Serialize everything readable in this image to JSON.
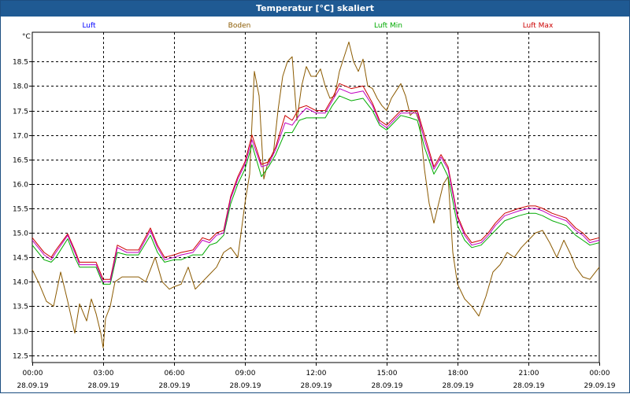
{
  "window_title": "Temperatur [°C] skaliert",
  "colors": {
    "titlebar": "#1f5a93",
    "grid": "#000000",
    "luft": "#0000ff",
    "boden": "#8b5a00",
    "luft_min": "#00aa00",
    "luft_max": "#cc0000",
    "luft_line": "#c000c0"
  },
  "chart_data": {
    "type": "line",
    "title": "Temperatur [°C] skaliert",
    "ylabel": "°C",
    "ylim": [
      12.35,
      19.1
    ],
    "xlim": [
      0,
      24
    ],
    "yticks": [
      12.5,
      13.0,
      13.5,
      14.0,
      14.5,
      15.0,
      15.5,
      16.0,
      16.5,
      17.0,
      17.5,
      18.0,
      18.5
    ],
    "xticks": [
      {
        "value": 0,
        "time": "00:00",
        "date": "28.09.19"
      },
      {
        "value": 3,
        "time": "03:00",
        "date": "28.09.19"
      },
      {
        "value": 6,
        "time": "06:00",
        "date": "28.09.19"
      },
      {
        "value": 9,
        "time": "09:00",
        "date": "28.09.19"
      },
      {
        "value": 12,
        "time": "12:00",
        "date": "28.09.19"
      },
      {
        "value": 15,
        "time": "15:00",
        "date": "28.09.19"
      },
      {
        "value": 18,
        "time": "18:00",
        "date": "28.09.19"
      },
      {
        "value": 21,
        "time": "21:00",
        "date": "28.09.19"
      },
      {
        "value": 24,
        "time": "00:00",
        "date": "29.09.19"
      }
    ],
    "grid": true,
    "legend": [
      "Luft",
      "Boden",
      "Luft Min",
      "Luft Max"
    ],
    "series": [
      {
        "name": "Luft",
        "x": [
          0,
          0.5,
          0.8,
          1.0,
          1.5,
          1.8,
          2.0,
          2.3,
          2.7,
          3.0,
          3.3,
          3.6,
          4.0,
          4.5,
          5.0,
          5.3,
          5.6,
          6.0,
          6.3,
          6.8,
          7.2,
          7.5,
          7.8,
          8.1,
          8.4,
          8.7,
          9.0,
          9.3,
          9.7,
          10.0,
          10.3,
          10.7,
          11.0,
          11.3,
          11.6,
          12.0,
          12.4,
          12.7,
          13.0,
          13.5,
          14.0,
          14.4,
          14.7,
          15.0,
          15.3,
          15.6,
          16.0,
          16.3,
          16.6,
          17.0,
          17.3,
          17.6,
          18.0,
          18.3,
          18.6,
          19.0,
          19.3,
          19.6,
          20.0,
          20.3,
          20.6,
          21.0,
          21.3,
          21.6,
          22.0,
          22.3,
          22.6,
          23.0,
          23.3,
          23.6,
          24.0
        ],
        "values": [
          14.85,
          14.55,
          14.45,
          14.6,
          14.95,
          14.6,
          14.35,
          14.35,
          14.35,
          14.0,
          14.0,
          14.7,
          14.6,
          14.6,
          15.05,
          14.7,
          14.45,
          14.5,
          14.55,
          14.6,
          14.85,
          14.8,
          14.95,
          15.0,
          15.7,
          16.1,
          16.4,
          16.9,
          16.35,
          16.4,
          16.7,
          17.25,
          17.2,
          17.4,
          17.55,
          17.45,
          17.45,
          17.7,
          17.95,
          17.85,
          17.9,
          17.6,
          17.25,
          17.15,
          17.3,
          17.45,
          17.45,
          17.45,
          16.9,
          16.3,
          16.55,
          16.3,
          15.3,
          14.95,
          14.75,
          14.8,
          14.95,
          15.15,
          15.35,
          15.4,
          15.45,
          15.5,
          15.5,
          15.45,
          15.35,
          15.3,
          15.25,
          15.05,
          14.95,
          14.8,
          14.85
        ]
      },
      {
        "name": "Luft Max",
        "x": [
          0,
          0.5,
          0.8,
          1.0,
          1.5,
          1.8,
          2.0,
          2.3,
          2.7,
          3.0,
          3.3,
          3.6,
          4.0,
          4.5,
          5.0,
          5.3,
          5.6,
          6.0,
          6.3,
          6.8,
          7.2,
          7.5,
          7.8,
          8.1,
          8.4,
          8.7,
          9.0,
          9.3,
          9.7,
          10.0,
          10.3,
          10.7,
          11.0,
          11.3,
          11.6,
          12.0,
          12.4,
          12.7,
          13.0,
          13.5,
          14.0,
          14.4,
          14.7,
          15.0,
          15.3,
          15.6,
          16.0,
          16.3,
          16.6,
          17.0,
          17.3,
          17.6,
          18.0,
          18.3,
          18.6,
          19.0,
          19.3,
          19.6,
          20.0,
          20.3,
          20.6,
          21.0,
          21.3,
          21.6,
          22.0,
          22.3,
          22.6,
          23.0,
          23.3,
          23.6,
          24.0
        ],
        "values": [
          14.9,
          14.6,
          14.5,
          14.65,
          14.98,
          14.65,
          14.4,
          14.4,
          14.4,
          14.05,
          14.05,
          14.75,
          14.65,
          14.65,
          15.1,
          14.75,
          14.5,
          14.55,
          14.6,
          14.65,
          14.9,
          14.85,
          15.0,
          15.05,
          15.75,
          16.15,
          16.45,
          17.0,
          16.4,
          16.45,
          16.75,
          17.4,
          17.3,
          17.55,
          17.6,
          17.5,
          17.5,
          17.75,
          18.05,
          17.95,
          18.0,
          17.65,
          17.3,
          17.2,
          17.35,
          17.5,
          17.5,
          17.5,
          17.0,
          16.35,
          16.6,
          16.35,
          15.35,
          15.0,
          14.8,
          14.85,
          15.0,
          15.2,
          15.4,
          15.45,
          15.5,
          15.55,
          15.55,
          15.5,
          15.4,
          15.35,
          15.3,
          15.1,
          15.0,
          14.85,
          14.9
        ]
      },
      {
        "name": "Luft Min",
        "x": [
          0,
          0.5,
          0.8,
          1.0,
          1.5,
          1.8,
          2.0,
          2.3,
          2.7,
          3.0,
          3.3,
          3.6,
          4.0,
          4.5,
          5.0,
          5.3,
          5.6,
          6.0,
          6.3,
          6.8,
          7.2,
          7.5,
          7.8,
          8.1,
          8.4,
          8.7,
          9.0,
          9.3,
          9.7,
          10.0,
          10.3,
          10.7,
          11.0,
          11.3,
          11.6,
          12.0,
          12.4,
          12.7,
          13.0,
          13.5,
          14.0,
          14.4,
          14.7,
          15.0,
          15.3,
          15.6,
          16.0,
          16.3,
          16.6,
          17.0,
          17.3,
          17.6,
          18.0,
          18.3,
          18.6,
          19.0,
          19.3,
          19.6,
          20.0,
          20.3,
          20.6,
          21.0,
          21.3,
          21.6,
          22.0,
          22.3,
          22.6,
          23.0,
          23.3,
          23.6,
          24.0
        ],
        "values": [
          14.75,
          14.45,
          14.4,
          14.5,
          14.88,
          14.5,
          14.3,
          14.3,
          14.3,
          13.95,
          13.95,
          14.6,
          14.55,
          14.55,
          14.95,
          14.6,
          14.4,
          14.45,
          14.45,
          14.55,
          14.55,
          14.75,
          14.8,
          14.95,
          15.6,
          16.0,
          16.3,
          16.8,
          16.15,
          16.35,
          16.6,
          17.05,
          17.05,
          17.3,
          17.35,
          17.35,
          17.35,
          17.6,
          17.8,
          17.7,
          17.75,
          17.5,
          17.2,
          17.1,
          17.25,
          17.4,
          17.35,
          17.3,
          16.75,
          16.2,
          16.45,
          16.15,
          15.15,
          14.85,
          14.7,
          14.75,
          14.9,
          15.05,
          15.25,
          15.3,
          15.35,
          15.4,
          15.4,
          15.35,
          15.25,
          15.2,
          15.15,
          14.95,
          14.85,
          14.75,
          14.8
        ]
      },
      {
        "name": "Boden",
        "x": [
          0,
          0.3,
          0.6,
          0.9,
          1.2,
          1.5,
          1.8,
          2.0,
          2.3,
          2.5,
          2.7,
          2.9,
          3.0,
          3.1,
          3.3,
          3.5,
          3.8,
          4.1,
          4.5,
          4.8,
          5.0,
          5.2,
          5.5,
          5.8,
          6.0,
          6.3,
          6.6,
          6.9,
          7.2,
          7.5,
          7.8,
          8.1,
          8.4,
          8.7,
          9.0,
          9.2,
          9.4,
          9.6,
          9.8,
          10.0,
          10.2,
          10.4,
          10.6,
          10.8,
          11.0,
          11.2,
          11.4,
          11.6,
          11.8,
          12.0,
          12.2,
          12.4,
          12.6,
          12.8,
          13.0,
          13.2,
          13.4,
          13.6,
          13.8,
          14.0,
          14.2,
          14.4,
          14.6,
          14.8,
          15.0,
          15.2,
          15.4,
          15.6,
          15.8,
          16.0,
          16.2,
          16.4,
          16.6,
          16.8,
          17.0,
          17.2,
          17.4,
          17.6,
          17.8,
          18.0,
          18.3,
          18.6,
          18.9,
          19.2,
          19.5,
          19.8,
          20.1,
          20.4,
          20.7,
          21.0,
          21.3,
          21.6,
          21.9,
          22.2,
          22.5,
          22.8,
          23.0,
          23.3,
          23.6,
          24.0
        ],
        "values": [
          14.25,
          13.95,
          13.6,
          13.5,
          14.2,
          13.6,
          12.95,
          13.55,
          13.2,
          13.65,
          13.35,
          12.95,
          12.65,
          13.25,
          13.5,
          14.0,
          14.1,
          14.1,
          14.1,
          14.0,
          14.25,
          14.5,
          14.0,
          13.85,
          13.9,
          13.95,
          14.3,
          13.85,
          14.0,
          14.15,
          14.3,
          14.6,
          14.7,
          14.5,
          15.6,
          16.2,
          18.3,
          17.8,
          16.1,
          16.5,
          16.6,
          17.5,
          18.2,
          18.5,
          18.6,
          17.3,
          18.0,
          18.4,
          18.2,
          18.2,
          18.35,
          18.0,
          17.75,
          17.8,
          18.3,
          18.6,
          18.9,
          18.5,
          18.3,
          18.55,
          18.0,
          17.95,
          17.75,
          17.6,
          17.5,
          17.75,
          17.9,
          18.05,
          17.8,
          17.4,
          17.5,
          17.25,
          16.3,
          15.6,
          15.2,
          15.6,
          16.0,
          16.15,
          14.6,
          13.95,
          13.65,
          13.5,
          13.3,
          13.7,
          14.2,
          14.35,
          14.6,
          14.5,
          14.7,
          14.85,
          15.0,
          15.05,
          14.8,
          14.5,
          14.85,
          14.55,
          14.3,
          14.1,
          14.05,
          14.3
        ]
      }
    ]
  }
}
